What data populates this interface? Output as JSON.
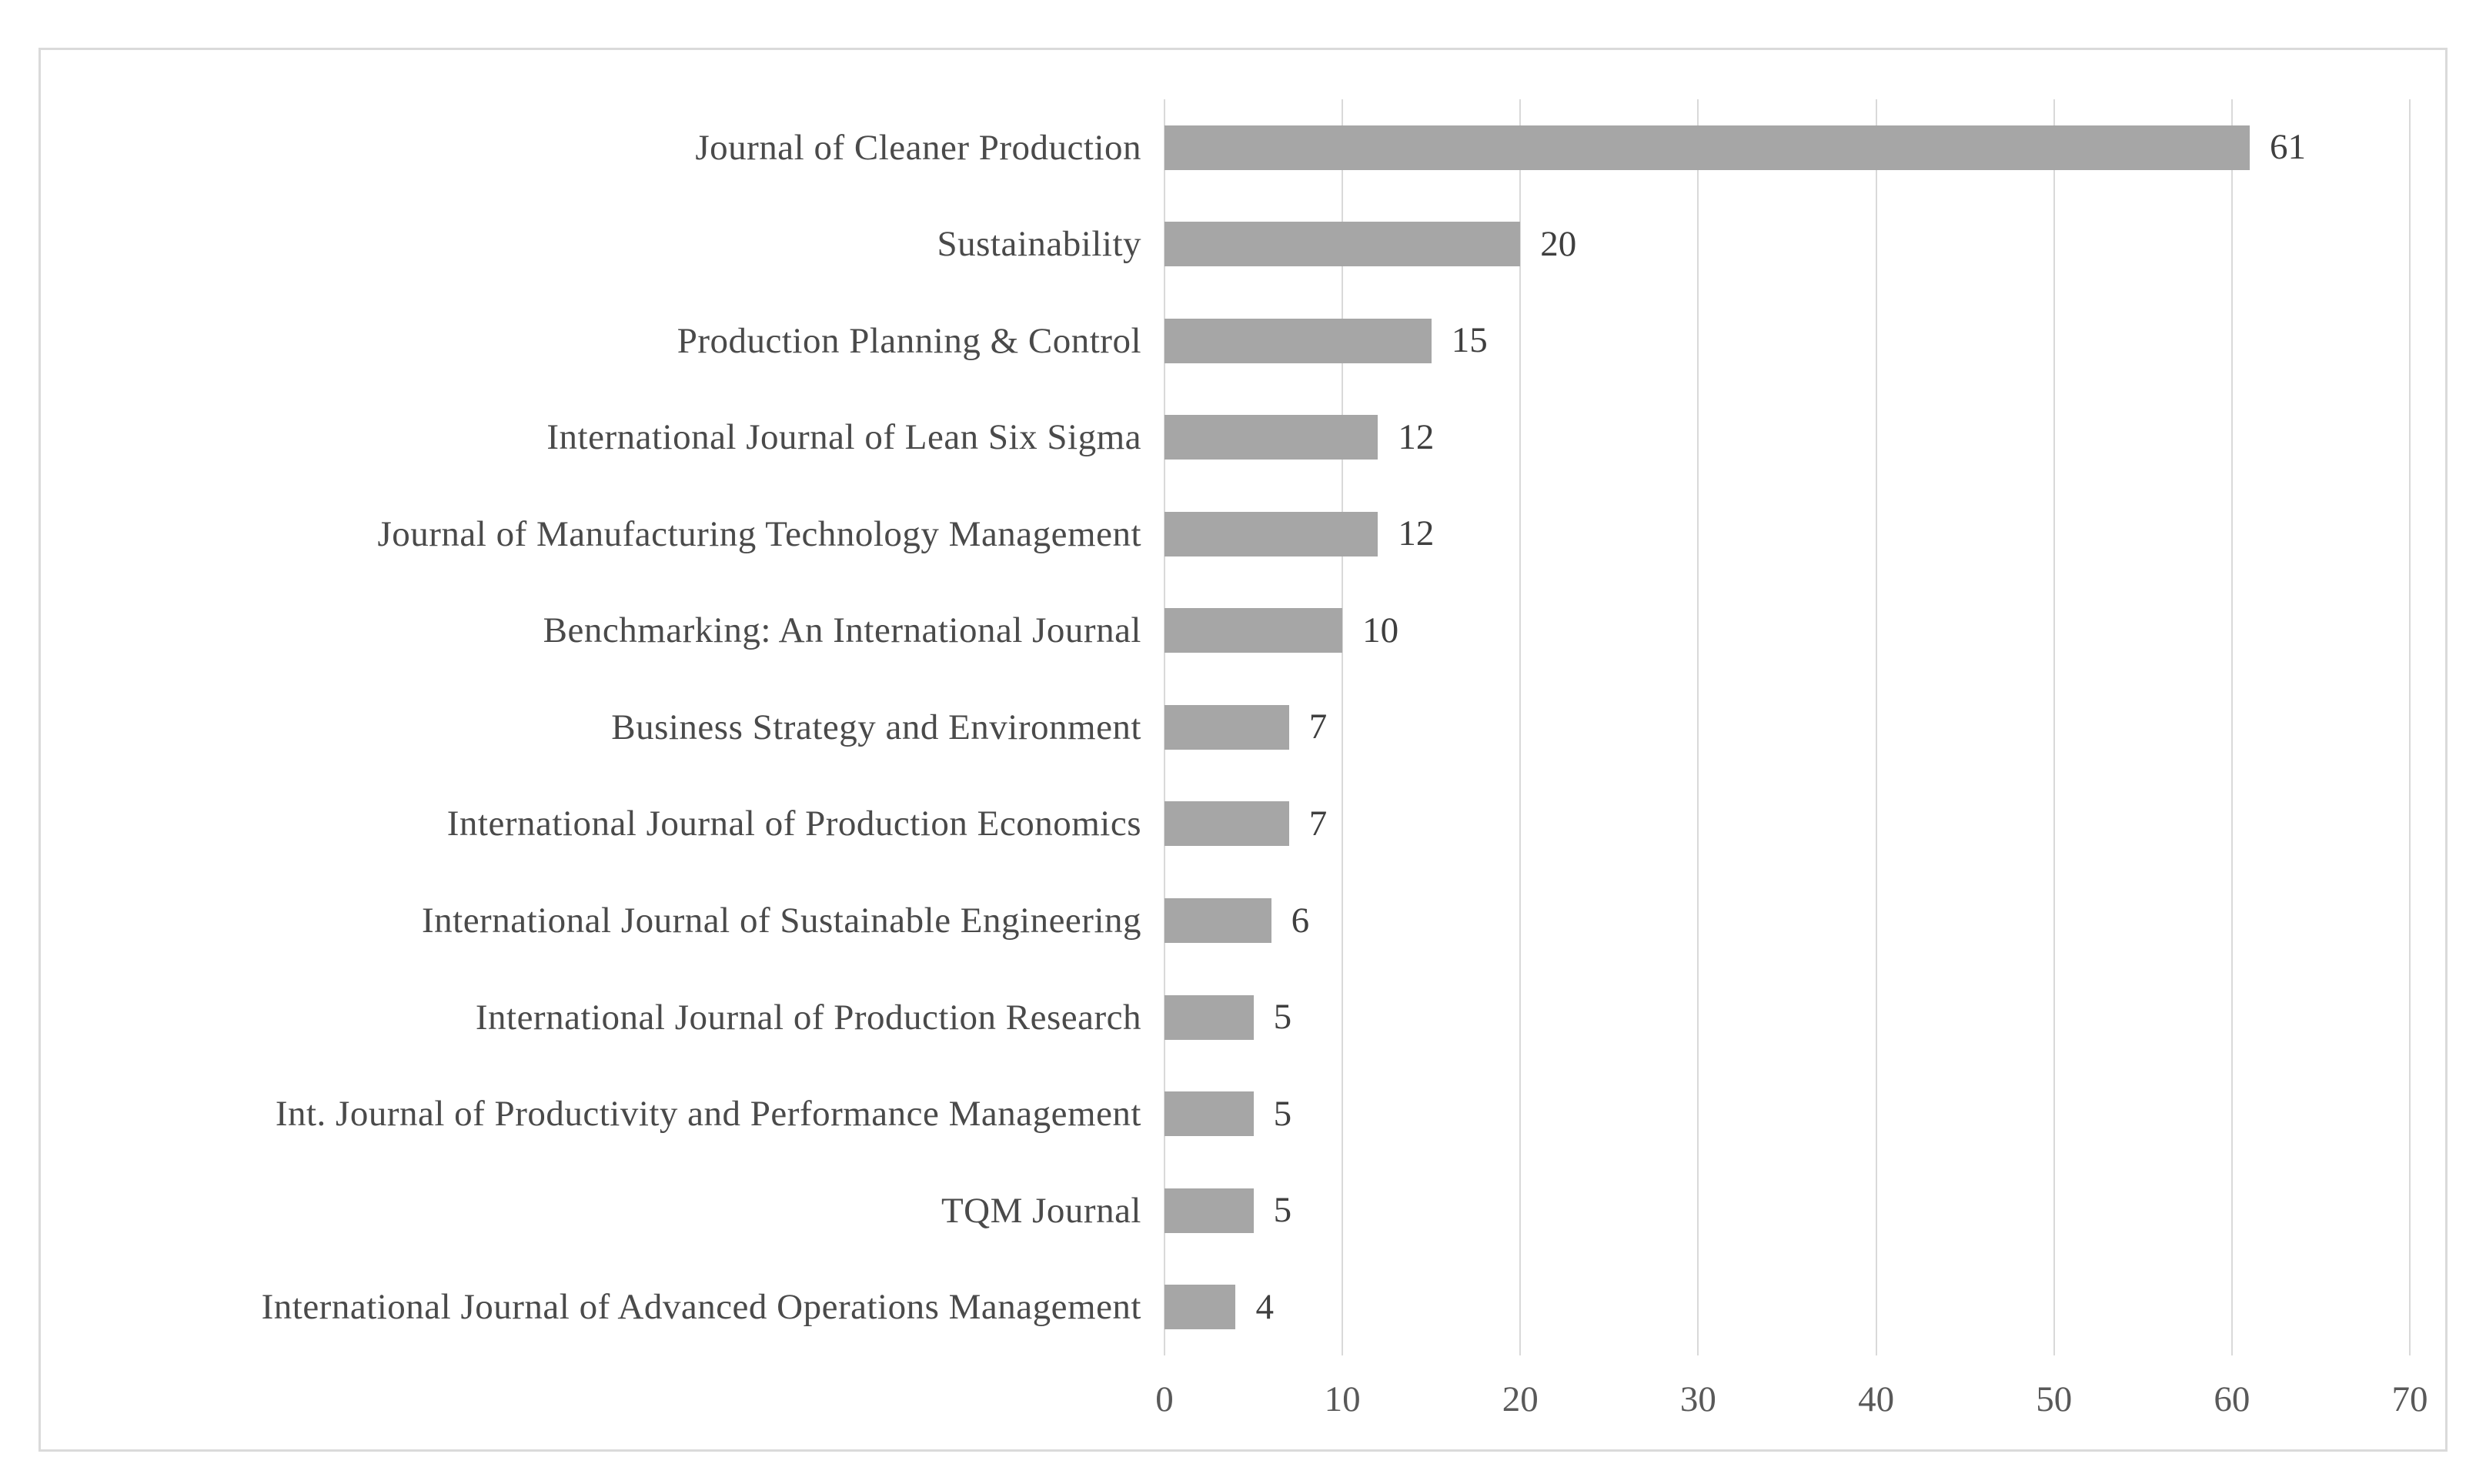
{
  "chart_data": {
    "type": "bar",
    "orientation": "horizontal",
    "title": "",
    "xlabel": "",
    "ylabel": "",
    "categories": [
      "Journal of Cleaner Production",
      "Sustainability",
      "Production Planning & Control",
      "International Journal of Lean Six Sigma",
      "Journal of Manufacturing Technology Management",
      "Benchmarking: An International Journal",
      "Business Strategy and Environment",
      "International Journal of Production Economics",
      "International Journal of Sustainable Engineering",
      "International Journal of Production Research",
      "Int. Journal of Productivity and Performance Management",
      "TQM Journal",
      "International Journal of Advanced Operations Management"
    ],
    "values": [
      61,
      20,
      15,
      12,
      12,
      10,
      7,
      7,
      6,
      5,
      5,
      5,
      4
    ],
    "data_labels": [
      "61",
      "20",
      "15",
      "12",
      "12",
      "10",
      "7",
      "7",
      "6",
      "5",
      "5",
      "5",
      "4"
    ],
    "x_ticks": [
      "0",
      "10",
      "20",
      "30",
      "40",
      "50",
      "60",
      "70"
    ],
    "xlim": [
      0,
      70
    ],
    "grid": "vertical",
    "legend_position": "none"
  },
  "colors": {
    "bar": "#a6a6a6",
    "gridline": "#d9d9d9",
    "frame_border": "#dadada",
    "category_text": "#4a4a4a",
    "value_text": "#3f3f3f",
    "tick_text": "#595959",
    "background": "#ffffff"
  }
}
